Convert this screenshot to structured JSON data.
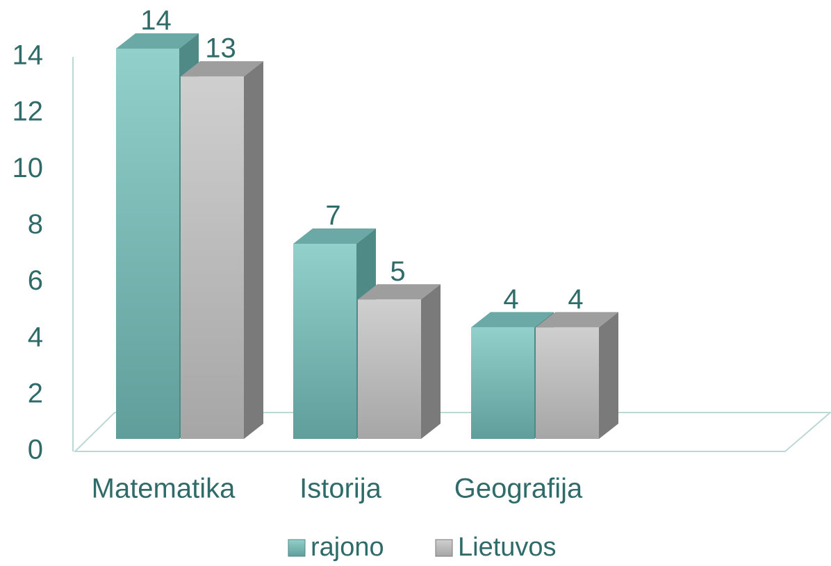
{
  "chart_data": {
    "type": "bar3d",
    "categories": [
      "Matematika",
      "Istorija",
      "Geografija"
    ],
    "series": [
      {
        "name": "rajono",
        "color": "#7fc4c0",
        "values": [
          14,
          7,
          4
        ]
      },
      {
        "name": "Lietuvos",
        "color": "#bdbdbd",
        "values": [
          13,
          5,
          4
        ]
      }
    ],
    "ylim": [
      0,
      14
    ],
    "yticks": [
      0,
      2,
      4,
      6,
      8,
      10,
      12,
      14
    ]
  }
}
